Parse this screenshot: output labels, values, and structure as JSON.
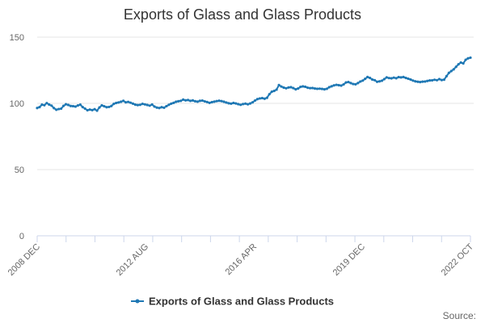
{
  "chart_data": {
    "type": "line",
    "title": "Exports of Glass and Glass Products",
    "xlabel": "",
    "ylabel": "",
    "ylim": [
      0,
      150
    ],
    "yticks": [
      0,
      50,
      100,
      150
    ],
    "x_start": "2008 DEC",
    "x_end": "2022 OCT",
    "x_tick_labels": [
      "2008 DEC",
      "2012 AUG",
      "2016 APR",
      "2019 DEC",
      "2022 OCT"
    ],
    "grid": true,
    "legend": "bottom-center",
    "series": [
      {
        "name": "Exports of Glass and Glass Products",
        "color": "#1f78b4",
        "values": [
          96.5,
          97.2,
          99.0,
          98.6,
          100.2,
          99.1,
          98.3,
          96.4,
          95.2,
          95.7,
          96.0,
          98.1,
          99.3,
          98.8,
          98.0,
          97.9,
          97.6,
          98.4,
          99.0,
          97.2,
          96.0,
          94.8,
          95.3,
          94.9,
          95.6,
          94.5,
          96.9,
          98.5,
          97.8,
          97.1,
          97.3,
          98.0,
          99.6,
          100.3,
          100.7,
          101.2,
          101.9,
          100.8,
          101.1,
          100.5,
          99.8,
          99.0,
          98.7,
          98.9,
          99.6,
          99.2,
          98.8,
          98.3,
          99.1,
          97.6,
          96.8,
          96.5,
          97.1,
          96.7,
          97.9,
          98.9,
          99.8,
          100.4,
          101.2,
          101.6,
          101.9,
          102.8,
          102.3,
          102.5,
          101.9,
          102.2,
          101.6,
          101.3,
          101.9,
          102.1,
          101.5,
          101.0,
          100.4,
          100.9,
          101.3,
          101.7,
          102.0,
          101.7,
          101.2,
          100.6,
          100.1,
          99.8,
          100.3,
          99.9,
          99.4,
          98.9,
          99.5,
          99.8,
          99.3,
          99.9,
          100.8,
          102.1,
          103.2,
          103.7,
          104.0,
          103.5,
          104.2,
          106.9,
          108.8,
          109.4,
          110.4,
          113.8,
          112.7,
          111.9,
          111.4,
          112.0,
          112.2,
          111.5,
          110.6,
          111.2,
          112.4,
          112.8,
          112.5,
          111.8,
          111.5,
          111.6,
          111.2,
          111.0,
          111.1,
          110.9,
          110.6,
          111.0,
          112.2,
          112.9,
          113.6,
          114.0,
          113.7,
          113.4,
          114.3,
          115.8,
          116.1,
          115.3,
          114.6,
          114.4,
          115.3,
          116.5,
          117.2,
          118.5,
          119.9,
          119.2,
          118.0,
          117.5,
          116.3,
          116.6,
          117.1,
          118.3,
          119.6,
          119.1,
          118.9,
          119.4,
          119.0,
          119.8,
          119.6,
          119.9,
          119.2,
          118.6,
          118.0,
          117.2,
          116.6,
          116.3,
          116.1,
          116.4,
          116.5,
          116.9,
          117.3,
          117.4,
          117.8,
          117.5,
          118.3,
          117.6,
          117.9,
          120.5,
          123.0,
          124.4,
          125.7,
          127.6,
          129.5,
          130.8,
          130.2,
          132.9,
          134.0,
          134.5
        ]
      }
    ],
    "source_label": "Source:"
  }
}
